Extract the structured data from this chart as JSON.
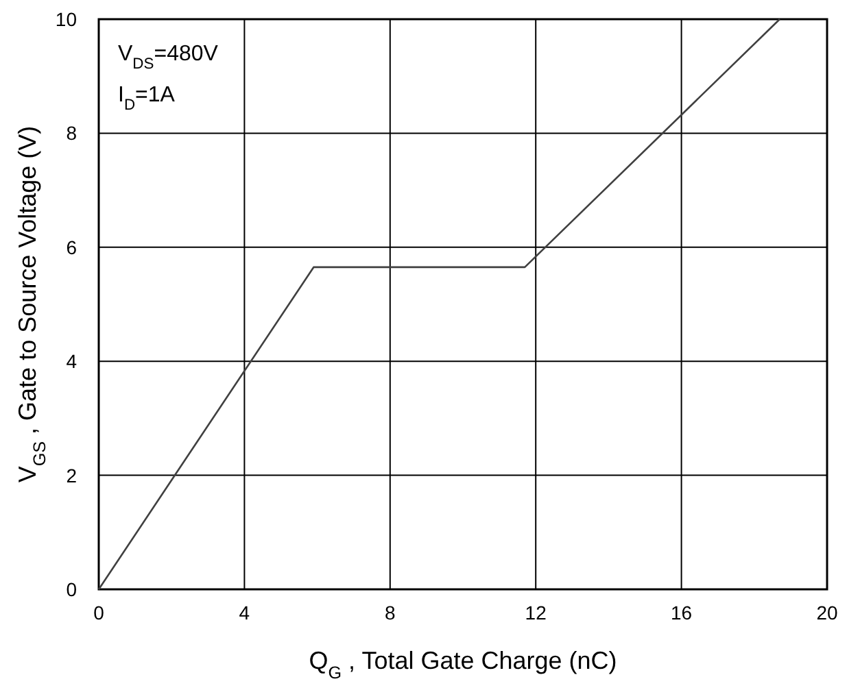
{
  "chart_data": {
    "type": "line",
    "xlabel": "Q$_{G}$ , Total Gate Charge (nC)",
    "ylabel": "V$_{GS}$ , Gate to Source Voltage (V)",
    "annotations": [
      "V$_{DS}$=480V",
      "I$_{D}$=1A"
    ],
    "x": [
      0,
      5.9,
      11.7,
      18.7
    ],
    "series": [
      {
        "color": "#404040",
        "values": [
          0,
          5.65,
          5.65,
          10
        ]
      }
    ],
    "xlim": [
      0,
      20
    ],
    "xticks": [
      0,
      4,
      8,
      12,
      16,
      20
    ],
    "ylim": [
      0,
      10
    ],
    "yticks": [
      0,
      2,
      4,
      6,
      8,
      10
    ],
    "grid": true
  }
}
